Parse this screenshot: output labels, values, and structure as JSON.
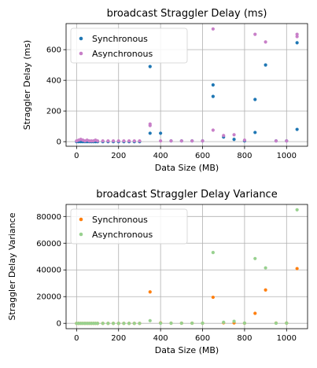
{
  "chart_data": [
    {
      "type": "scatter",
      "title": "broadcast Straggler Delay (ms)",
      "xlabel": "Data Size (MB)",
      "ylabel": "Straggler Delay (ms)",
      "xlim": [
        -50,
        1100
      ],
      "ylim": [
        -30,
        770
      ],
      "xticks": [
        0,
        200,
        400,
        600,
        800,
        1000
      ],
      "yticks": [
        0,
        200,
        400,
        600
      ],
      "grid": true,
      "legend": "top-left",
      "series": [
        {
          "name": "Synchronous",
          "color": "#1f77b4",
          "x": [
            0,
            10,
            20,
            30,
            40,
            50,
            60,
            70,
            80,
            90,
            100,
            125,
            150,
            175,
            200,
            225,
            250,
            275,
            300,
            350,
            350,
            400,
            450,
            500,
            550,
            600,
            650,
            650,
            700,
            750,
            800,
            850,
            850,
            900,
            950,
            1000,
            1050,
            1050
          ],
          "y": [
            0,
            0,
            0,
            0,
            0,
            0,
            0,
            0,
            0,
            0,
            0,
            0,
            0,
            0,
            0,
            0,
            0,
            0,
            0,
            490,
            55,
            55,
            5,
            5,
            5,
            5,
            370,
            295,
            30,
            15,
            5,
            275,
            60,
            500,
            5,
            5,
            645,
            80
          ]
        },
        {
          "name": "Asynchronous",
          "color": "#c87fc8",
          "x": [
            0,
            10,
            20,
            30,
            40,
            50,
            60,
            70,
            80,
            90,
            100,
            125,
            150,
            175,
            200,
            225,
            250,
            275,
            300,
            350,
            350,
            400,
            450,
            500,
            550,
            600,
            650,
            650,
            700,
            750,
            800,
            850,
            900,
            950,
            1000,
            1050,
            1050
          ],
          "y": [
            5,
            10,
            15,
            10,
            5,
            10,
            5,
            5,
            5,
            10,
            5,
            5,
            5,
            5,
            5,
            5,
            5,
            5,
            5,
            115,
            105,
            5,
            5,
            5,
            5,
            5,
            735,
            75,
            40,
            45,
            10,
            700,
            650,
            5,
            5,
            700,
            685
          ]
        }
      ]
    },
    {
      "type": "scatter",
      "title": "broadcast Straggler Delay Variance",
      "xlabel": "Data Size (MB)",
      "ylabel": "Straggler Delay Variance",
      "xlim": [
        -50,
        1100
      ],
      "ylim": [
        -4000,
        89000
      ],
      "xticks": [
        0,
        200,
        400,
        600,
        800,
        1000
      ],
      "yticks": [
        0,
        20000,
        40000,
        60000,
        80000
      ],
      "grid": true,
      "legend": "top-left",
      "series": [
        {
          "name": "Synchronous",
          "color": "#ff7f0e",
          "x": [
            0,
            10,
            20,
            30,
            40,
            50,
            60,
            70,
            80,
            90,
            100,
            125,
            150,
            175,
            200,
            225,
            250,
            275,
            300,
            350,
            400,
            450,
            500,
            550,
            600,
            650,
            700,
            750,
            800,
            850,
            900,
            950,
            1000,
            1050
          ],
          "y": [
            0,
            0,
            0,
            0,
            0,
            0,
            0,
            0,
            0,
            0,
            0,
            0,
            0,
            0,
            0,
            0,
            0,
            0,
            0,
            23500,
            300,
            100,
            100,
            100,
            100,
            19500,
            400,
            300,
            100,
            7500,
            25000,
            200,
            200,
            41000
          ]
        },
        {
          "name": "Asynchronous",
          "color": "#98d18f",
          "x": [
            0,
            10,
            20,
            30,
            40,
            50,
            60,
            70,
            80,
            90,
            100,
            125,
            150,
            175,
            200,
            225,
            250,
            275,
            300,
            350,
            400,
            450,
            500,
            550,
            600,
            650,
            700,
            750,
            800,
            850,
            900,
            950,
            1000,
            1050
          ],
          "y": [
            0,
            0,
            0,
            0,
            0,
            0,
            0,
            0,
            0,
            0,
            0,
            0,
            0,
            0,
            0,
            0,
            0,
            0,
            0,
            2000,
            100,
            100,
            100,
            100,
            100,
            53000,
            800,
            1500,
            200,
            48500,
            41500,
            100,
            200,
            85000
          ]
        }
      ]
    }
  ]
}
